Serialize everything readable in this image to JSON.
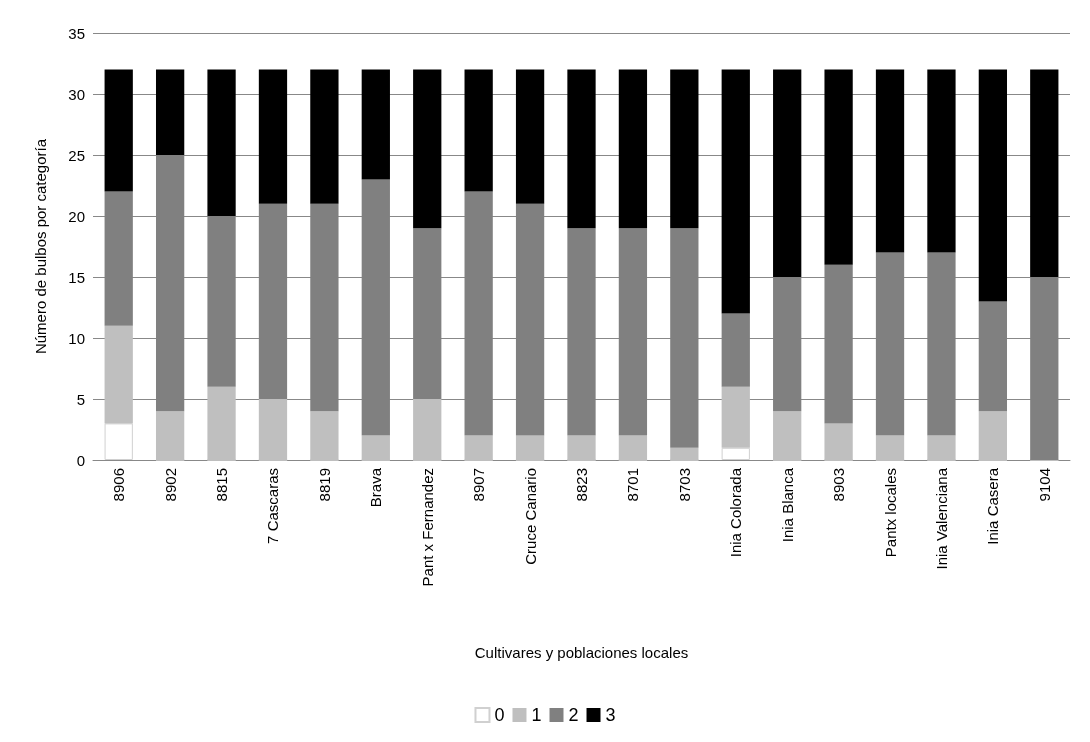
{
  "chart_data": {
    "type": "bar",
    "stacked": true,
    "xlabel": "Cultivares y poblaciones locales",
    "ylabel": "Número de bulbos por categoría",
    "categories": [
      "8906",
      "8902",
      "8815",
      "7 Cascaras",
      "8819",
      "Brava",
      "Pant x Fernandez",
      "8907",
      "Cruce Canario",
      "8823",
      "8701",
      "8703",
      "Inia Colorada",
      "Inia Blanca",
      "8903",
      "Pantx locales",
      "Inia Valenciana",
      "Inia Casera",
      "9104"
    ],
    "series": [
      {
        "name": "0",
        "color": "#ffffff",
        "values": [
          3,
          0,
          0,
          0,
          0,
          0,
          0,
          0,
          0,
          0,
          0,
          0,
          1,
          0,
          0,
          0,
          0,
          0,
          0
        ]
      },
      {
        "name": "1",
        "color": "#bfbfbf",
        "values": [
          8,
          4,
          6,
          5,
          4,
          2,
          5,
          2,
          2,
          2,
          2,
          1,
          5,
          4,
          3,
          2,
          2,
          4,
          0
        ]
      },
      {
        "name": "2",
        "color": "#808080",
        "values": [
          11,
          21,
          14,
          16,
          17,
          21,
          14,
          20,
          19,
          17,
          17,
          18,
          6,
          11,
          13,
          15,
          15,
          9,
          15
        ]
      },
      {
        "name": "3",
        "color": "#000000",
        "values": [
          10,
          7,
          12,
          11,
          11,
          9,
          13,
          10,
          11,
          13,
          13,
          13,
          20,
          17,
          16,
          15,
          15,
          19,
          17
        ]
      }
    ],
    "ylim": [
      0,
      35
    ],
    "yticks": [
      0,
      5,
      10,
      15,
      20,
      25,
      30,
      35
    ],
    "grid": "y",
    "legend": "bottom"
  }
}
